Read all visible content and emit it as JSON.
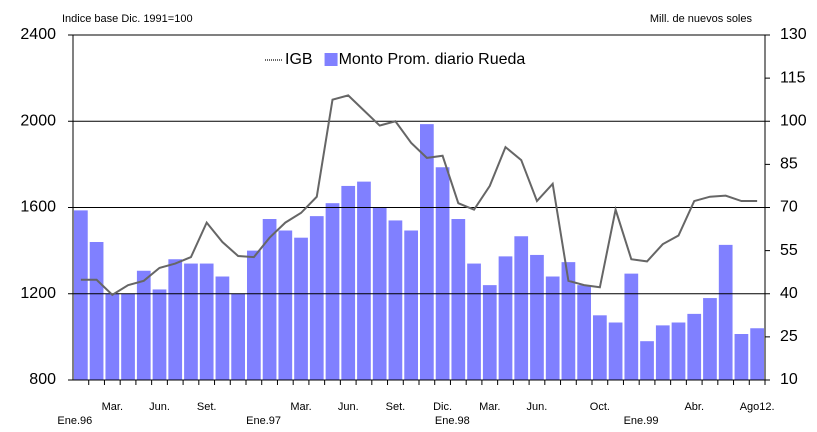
{
  "chart_data": {
    "type": "combo",
    "y_label": "Indice base Dic. 1991=100",
    "y2_label": "Mill. de nuevos soles",
    "categories": [
      "Ene.96",
      null,
      "Mar.",
      null,
      null,
      "Jun.",
      null,
      null,
      "Set.",
      null,
      null,
      null,
      "Ene.97",
      null,
      "Mar.",
      null,
      null,
      "Jun.",
      null,
      null,
      "Set.",
      null,
      null,
      "Dic.",
      "Ene.98",
      null,
      "Mar.",
      null,
      null,
      "Jun.",
      null,
      null,
      null,
      "Oct.",
      null,
      null,
      "Ene.99",
      null,
      null,
      "Abr.",
      null,
      null,
      null,
      "Ago12."
    ],
    "series": [
      {
        "name": "IGB",
        "type": "line",
        "axis": "y",
        "color": "#666666",
        "values": [
          1265,
          1265,
          1195,
          1240,
          1260,
          1320,
          1340,
          1370,
          1530,
          1440,
          1375,
          1370,
          1460,
          1530,
          1575,
          1650,
          2100,
          2120,
          2050,
          1980,
          2000,
          1900,
          1830,
          1840,
          1620,
          1590,
          1700,
          1880,
          1820,
          1630,
          1710,
          1260,
          1240,
          1230,
          1590,
          1360,
          1350,
          1430,
          1470,
          1630,
          1650,
          1655,
          1630,
          1630
        ]
      },
      {
        "name": "Monto Prom. diario Rueda",
        "type": "bar",
        "axis": "y2",
        "color": "#8080ff",
        "values": [
          69,
          58,
          40,
          40,
          48,
          41.5,
          52,
          50.5,
          50.5,
          46,
          40,
          55,
          66,
          62,
          59.5,
          67,
          71.5,
          77.5,
          79,
          70,
          65.5,
          62,
          99,
          84,
          66,
          50.5,
          43,
          53,
          60,
          53.5,
          46,
          51,
          43,
          32.5,
          30,
          47,
          23.5,
          29,
          30,
          33,
          38.5,
          57,
          26,
          28
        ]
      }
    ],
    "ylim": [
      800,
      2400
    ],
    "yticks": [
      800,
      1200,
      1600,
      2000,
      2400
    ],
    "y2lim": [
      10,
      130
    ],
    "y2ticks": [
      10,
      25,
      40,
      55,
      70,
      85,
      100,
      115,
      130
    ],
    "grid": true
  }
}
